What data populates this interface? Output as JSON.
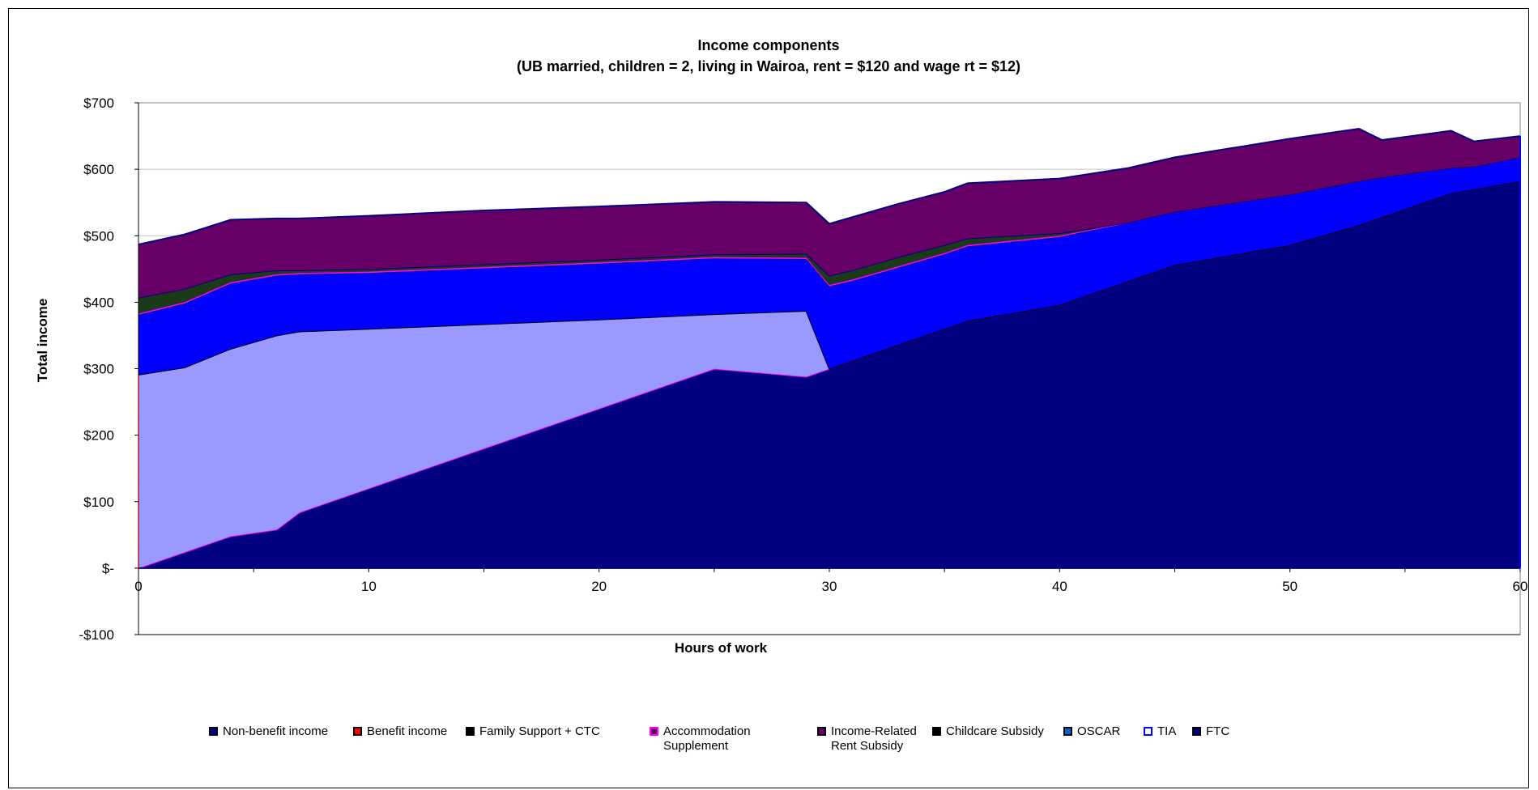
{
  "chart_data": {
    "type": "area",
    "title": "Income components",
    "subtitle": "(UB married, children = 2, living in Wairoa, rent  = $120 and wage rt = $12)",
    "xlabel": "Hours of work",
    "ylabel": "Total income",
    "xlim": [
      0,
      60
    ],
    "ylim": [
      -100,
      700
    ],
    "x_ticks": [
      "0",
      "10",
      "20",
      "30",
      "40",
      "50",
      "60"
    ],
    "y_ticks": [
      "$700",
      "$600",
      "$500",
      "$400",
      "$300",
      "$200",
      "$100",
      "$-",
      "-$100"
    ],
    "grid": "horizontal",
    "legend_position": "bottom",
    "x": [
      0,
      2,
      4,
      6,
      7,
      10,
      15,
      20,
      25,
      29,
      30,
      31,
      33,
      35,
      36,
      40,
      43,
      45,
      50,
      53,
      54,
      57,
      58,
      60
    ],
    "series": [
      {
        "name": "Non-benefit income",
        "color": "#000080",
        "values": [
          0,
          24,
          48,
          58,
          84,
          120,
          180,
          240,
          300,
          288,
          300,
          312,
          336,
          360,
          372,
          396,
          432,
          456,
          486,
          516,
          528,
          564,
          570,
          582
        ]
      },
      {
        "name": "Benefit income",
        "color": "#9999FF",
        "values": [
          291,
          278,
          282,
          292,
          272,
          240,
          187,
          134,
          82,
          99,
          0,
          0,
          0,
          0,
          0,
          0,
          0,
          0,
          0,
          0,
          0,
          0,
          0,
          0
        ]
      },
      {
        "name": "Family Support + CTC",
        "color": "#0000FF",
        "values": [
          90,
          96,
          98,
          90,
          86,
          84,
          84,
          84,
          84,
          78,
          124,
          120,
          116,
          112,
          112,
          102,
          88,
          80,
          76,
          66,
          60,
          38,
          34,
          36
        ]
      },
      {
        "name": "Accommodation Supplement",
        "color": "#FF00FF",
        "values": [
          2,
          2,
          2,
          2,
          2,
          2,
          2,
          2,
          2,
          2,
          2,
          2,
          2,
          2,
          2,
          2,
          0,
          0,
          0,
          0,
          0,
          0,
          0,
          0
        ]
      },
      {
        "name": "Income-Related Rent Subsidy",
        "color": "#1A3A1A",
        "values": [
          24,
          20,
          12,
          6,
          4,
          4,
          4,
          4,
          4,
          6,
          14,
          14,
          14,
          12,
          10,
          4,
          0,
          0,
          0,
          0,
          0,
          0,
          0,
          0
        ]
      },
      {
        "name": "Childcare Subsidy",
        "color": "#660066",
        "values": [
          80,
          82,
          82,
          78,
          78,
          80,
          81,
          80,
          79,
          77,
          78,
          80,
          80,
          80,
          83,
          82,
          82,
          82,
          84,
          79,
          56,
          56,
          38,
          32
        ]
      }
    ],
    "legend": [
      {
        "name": "Non-benefit income",
        "swatch": "#000080",
        "border": "#000000"
      },
      {
        "name": "Benefit income",
        "swatch": "#FF0000",
        "border": "#000000"
      },
      {
        "name": "Family Support + CTC",
        "swatch": "#000000",
        "border": "#000000"
      },
      {
        "name": "Accommodation Supplement",
        "swatch": "#660066",
        "border": "#FF00FF"
      },
      {
        "name": "Income-Related Rent Subsidy",
        "swatch": "#660066",
        "border": "#000000"
      },
      {
        "name": "Childcare Subsidy",
        "swatch": "#000000",
        "border": "#000000"
      },
      {
        "name": "OSCAR",
        "swatch": "#0066CC",
        "border": "#000000"
      },
      {
        "name": "TIA",
        "swatch": "#FFFFFF",
        "border": "#0000FF"
      },
      {
        "name": "FTC",
        "swatch": "#000080",
        "border": "#000000"
      }
    ]
  }
}
